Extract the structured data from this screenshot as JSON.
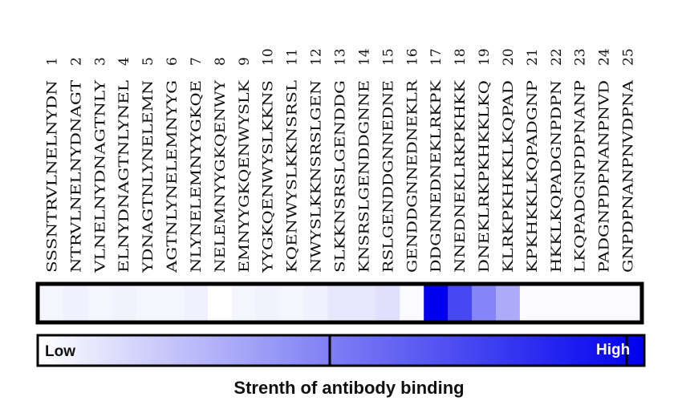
{
  "chart_data": {
    "type": "heatmap",
    "title": "",
    "caption": "Strenth of antibody binding",
    "scale": {
      "low_label": "Low",
      "high_label": "High",
      "low_color": "#ffffff",
      "high_color": "#0000ee"
    },
    "peptides": [
      {
        "index": "1",
        "sequence": "SSSNTRVLNELNYDN",
        "intensity": 0.04
      },
      {
        "index": "2",
        "sequence": "NTRVLNELNYDNAGT",
        "intensity": 0.06
      },
      {
        "index": "3",
        "sequence": "VLNELNYDNAGTNLY",
        "intensity": 0.04
      },
      {
        "index": "4",
        "sequence": "ELNYDNAGTNLYNEL",
        "intensity": 0.05
      },
      {
        "index": "5",
        "sequence": "YDNAGTNLYNELEMN",
        "intensity": 0.04
      },
      {
        "index": "6",
        "sequence": "AGTNLYNELEMNYYG",
        "intensity": 0.04
      },
      {
        "index": "7",
        "sequence": "NLYNELEMNYYGKQE",
        "intensity": 0.06
      },
      {
        "index": "8",
        "sequence": "NELEMNYYGKQENWY",
        "intensity": 0.0
      },
      {
        "index": "9",
        "sequence": "EMNYYGKQENWYSLK",
        "intensity": 0.04
      },
      {
        "index": "10",
        "sequence": "YYGKQENWYSLKKNS",
        "intensity": 0.05
      },
      {
        "index": "11",
        "sequence": "KQENWYSLKKNSRSL",
        "intensity": 0.04
      },
      {
        "index": "12",
        "sequence": "NWYSLKKNSRSLGEN",
        "intensity": 0.06
      },
      {
        "index": "13",
        "sequence": "SLKKNSRSLGENDDG",
        "intensity": 0.1
      },
      {
        "index": "14",
        "sequence": "KNSRSLGENDDGNNE",
        "intensity": 0.1
      },
      {
        "index": "15",
        "sequence": "RSLGENDDGNNEDNE",
        "intensity": 0.12
      },
      {
        "index": "16",
        "sequence": "GENDDGNNEDNEKLR",
        "intensity": 0.02
      },
      {
        "index": "17",
        "sequence": "DDGNNEDNEKLRKPK",
        "intensity": 1.0
      },
      {
        "index": "18",
        "sequence": "NNEDNEKLRKPKHKK",
        "intensity": 0.72
      },
      {
        "index": "19",
        "sequence": "DNEKLRKPKHKKLKQ",
        "intensity": 0.48
      },
      {
        "index": "20",
        "sequence": "KLRKPKHKKLKQPAD",
        "intensity": 0.33
      },
      {
        "index": "21",
        "sequence": "KPKHKKLKQPADGNP",
        "intensity": 0.02
      },
      {
        "index": "22",
        "sequence": "HKKLKQPADGNPDPN",
        "intensity": 0.02
      },
      {
        "index": "23",
        "sequence": "LKQPADGNPDPNANP",
        "intensity": 0.02
      },
      {
        "index": "24",
        "sequence": "PADGNPDPNANPNVD",
        "intensity": 0.02
      },
      {
        "index": "25",
        "sequence": "GNPDPNANPNVDPNA",
        "intensity": 0.02
      }
    ]
  }
}
